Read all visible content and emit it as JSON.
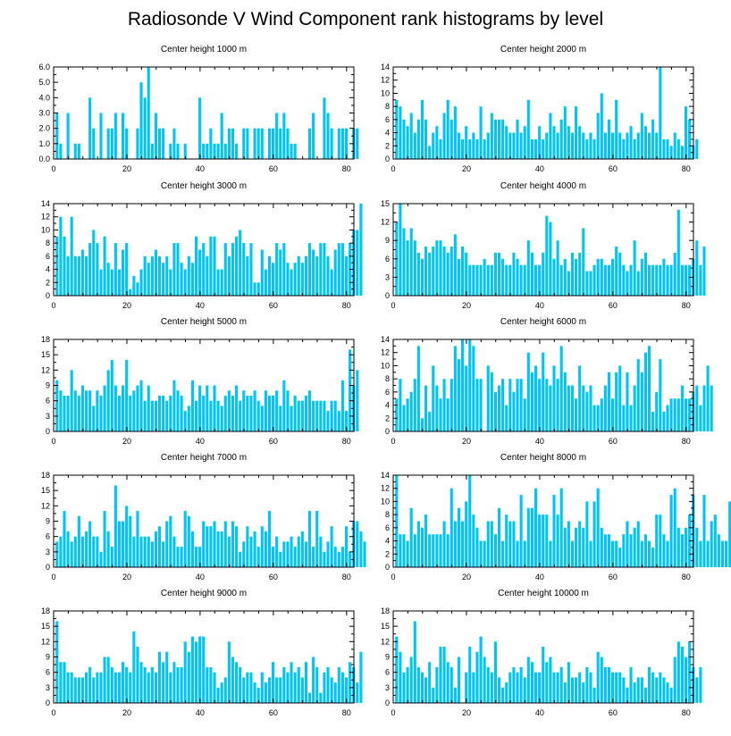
{
  "title": "Radiosonde V Wind Component rank histograms by level",
  "colors": {
    "bar": "#00c4f4",
    "axis": "#000000",
    "background": "#ffffff"
  },
  "chart_data": [
    {
      "type": "bar",
      "title": "Center height 1000 m",
      "xlim": [
        0,
        82
      ],
      "xticks": [
        "0",
        "20",
        "40",
        "60",
        "80"
      ],
      "ylim": [
        0,
        6
      ],
      "yticks": [
        "0.0",
        "1.0",
        "2.0",
        "3.0",
        "4.0",
        "5.0",
        "6.0"
      ],
      "values": [
        3,
        1,
        0,
        3,
        0,
        1,
        1,
        0,
        0,
        4,
        2,
        0,
        3,
        0,
        2,
        2,
        3,
        0,
        3,
        2,
        0,
        0,
        2,
        5,
        4,
        6,
        1,
        3,
        2,
        2,
        0,
        1,
        2,
        1,
        0,
        1,
        0,
        0,
        0,
        4,
        1,
        1,
        2,
        1,
        1,
        3,
        1,
        2,
        2,
        1,
        0,
        2,
        2,
        0,
        2,
        2,
        2,
        0,
        2,
        2,
        3,
        2,
        3,
        2,
        1,
        1,
        0,
        0,
        0,
        2,
        3,
        0,
        0,
        4,
        3,
        2,
        0,
        2,
        2,
        2,
        0,
        2,
        2
      ]
    },
    {
      "type": "bar",
      "title": "Center height 2000 m",
      "xlim": [
        0,
        82
      ],
      "xticks": [
        "0",
        "20",
        "40",
        "60",
        "80"
      ],
      "ylim": [
        0,
        14
      ],
      "yticks": [
        "0",
        "2",
        "4",
        "6",
        "8",
        "10",
        "12",
        "14"
      ],
      "values": [
        9,
        8,
        6,
        5,
        7,
        4,
        6,
        9,
        6,
        2,
        4,
        5,
        3,
        7,
        9,
        6,
        8,
        4,
        3,
        5,
        3,
        4,
        3,
        8,
        3,
        4,
        7,
        6,
        6,
        6,
        5,
        4,
        4,
        6,
        4,
        5,
        9,
        3,
        3,
        5,
        3,
        4,
        7,
        5,
        4,
        6,
        8,
        5,
        4,
        8,
        5,
        4,
        3,
        4,
        3,
        7,
        10,
        4,
        6,
        4,
        9,
        4,
        3,
        4,
        5,
        3,
        4,
        7,
        5,
        4,
        6,
        4,
        14,
        3,
        3,
        2,
        4,
        3,
        2,
        8,
        6,
        2,
        3
      ]
    },
    {
      "type": "bar",
      "title": "Center height 3000 m",
      "xlim": [
        0,
        82
      ],
      "xticks": [
        "0",
        "20",
        "40",
        "60",
        "80"
      ],
      "ylim": [
        0,
        14
      ],
      "yticks": [
        "0",
        "2",
        "4",
        "6",
        "8",
        "10",
        "12",
        "14"
      ],
      "values": [
        9,
        12,
        9,
        6,
        12,
        6,
        6,
        7,
        6,
        8,
        10,
        8,
        4,
        9,
        5,
        4,
        8,
        4,
        7,
        8,
        1,
        3,
        2,
        4,
        6,
        5,
        6,
        7,
        6,
        5,
        6,
        4,
        8,
        8,
        5,
        4,
        6,
        5,
        9,
        7,
        8,
        6,
        9,
        9,
        4,
        4,
        8,
        6,
        8,
        9,
        10,
        8,
        6,
        8,
        2,
        2,
        7,
        4,
        6,
        5,
        8,
        7,
        8,
        5,
        4,
        5,
        6,
        5,
        6,
        8,
        7,
        6,
        8,
        8,
        6,
        4,
        7,
        8,
        8,
        6,
        8,
        10,
        10,
        14
      ]
    },
    {
      "type": "bar",
      "title": "Center height 4000 m",
      "xlim": [
        0,
        82
      ],
      "xticks": [
        "0",
        "20",
        "40",
        "60",
        "80"
      ],
      "ylim": [
        0,
        15
      ],
      "yticks": [
        "0",
        "3",
        "6",
        "9",
        "12",
        "15"
      ],
      "values": [
        12,
        15,
        11,
        9,
        11,
        9,
        7,
        6,
        8,
        7,
        8,
        9,
        9,
        8,
        7,
        8,
        10,
        6,
        8,
        7,
        5,
        5,
        5,
        5,
        6,
        5,
        5,
        7,
        7,
        6,
        5,
        5,
        7,
        6,
        5,
        5,
        9,
        7,
        5,
        5,
        7,
        13,
        12,
        6,
        9,
        5,
        6,
        4,
        7,
        6,
        7,
        11,
        4,
        4,
        5,
        6,
        6,
        5,
        5,
        6,
        8,
        7,
        5,
        4,
        5,
        9,
        4,
        6,
        7,
        5,
        5,
        5,
        5,
        6,
        5,
        5,
        7,
        14,
        5,
        5,
        5,
        6,
        9,
        5,
        8
      ]
    },
    {
      "type": "bar",
      "title": "Center height 5000 m",
      "xlim": [
        0,
        82
      ],
      "xticks": [
        "0",
        "20",
        "40",
        "60",
        "80"
      ],
      "ylim": [
        0,
        18
      ],
      "yticks": [
        "0",
        "3",
        "6",
        "9",
        "12",
        "15",
        "18"
      ],
      "values": [
        10,
        8,
        7,
        7,
        12,
        8,
        7,
        9,
        8,
        8,
        5,
        8,
        7,
        9,
        12,
        14,
        9,
        7,
        9,
        14,
        7,
        8,
        9,
        10,
        6,
        9,
        6,
        6,
        7,
        7,
        6,
        7,
        10,
        8,
        7,
        4,
        5,
        10,
        6,
        9,
        7,
        9,
        6,
        9,
        6,
        5,
        7,
        8,
        7,
        9,
        6,
        8,
        7,
        7,
        8,
        6,
        5,
        8,
        7,
        7,
        8,
        5,
        10,
        8,
        5,
        7,
        6,
        6,
        7,
        8,
        6,
        6,
        6,
        6,
        4,
        6,
        6,
        4,
        10,
        4,
        16,
        9,
        12
      ]
    },
    {
      "type": "bar",
      "title": "Center height 6000 m",
      "xlim": [
        0,
        82
      ],
      "xticks": [
        "0",
        "20",
        "40",
        "60",
        "80"
      ],
      "ylim": [
        0,
        14
      ],
      "yticks": [
        "0",
        "2",
        "4",
        "6",
        "8",
        "10",
        "12",
        "14"
      ],
      "values": [
        5,
        8,
        4,
        5,
        6,
        8,
        13,
        2,
        7,
        3,
        10,
        7,
        5,
        8,
        5,
        8,
        13,
        11,
        14,
        10,
        14,
        13,
        8,
        8,
        0,
        10,
        9,
        6,
        7,
        8,
        4,
        8,
        6,
        8,
        8,
        5,
        12,
        9,
        10,
        8,
        12,
        8,
        7,
        10,
        8,
        13,
        9,
        7,
        7,
        5,
        10,
        7,
        6,
        7,
        4,
        4,
        5,
        7,
        9,
        5,
        9,
        10,
        4,
        9,
        4,
        7,
        11,
        9,
        12,
        13,
        3,
        6,
        11,
        3,
        4,
        5,
        5,
        5,
        7,
        5,
        5,
        6,
        7,
        4,
        7,
        10,
        7
      ]
    },
    {
      "type": "bar",
      "title": "Center height 7000 m",
      "xlim": [
        0,
        82
      ],
      "xticks": [
        "0",
        "20",
        "40",
        "60",
        "80"
      ],
      "ylim": [
        0,
        18
      ],
      "yticks": [
        "0",
        "3",
        "6",
        "9",
        "12",
        "15",
        "18"
      ],
      "values": [
        5,
        6,
        11,
        7,
        5,
        6,
        10,
        6,
        7,
        9,
        6,
        6,
        3,
        11,
        7,
        4,
        16,
        9,
        9,
        12,
        10,
        6,
        11,
        6,
        6,
        6,
        5,
        7,
        8,
        5,
        9,
        10,
        6,
        4,
        4,
        11,
        10,
        7,
        4,
        4,
        9,
        8,
        8,
        9,
        7,
        7,
        9,
        6,
        9,
        8,
        3,
        5,
        8,
        6,
        7,
        4,
        8,
        7,
        11,
        4,
        6,
        3,
        5,
        5,
        6,
        4,
        6,
        7,
        5,
        11,
        4,
        11,
        6,
        3,
        5,
        8,
        4,
        3,
        4,
        8,
        3,
        9,
        9,
        7,
        5
      ]
    },
    {
      "type": "bar",
      "title": "Center height 8000 m",
      "xlim": [
        0,
        82
      ],
      "xticks": [
        "0",
        "20",
        "40",
        "60",
        "80"
      ],
      "ylim": [
        0,
        14
      ],
      "yticks": [
        "0",
        "2",
        "4",
        "6",
        "8",
        "10",
        "12",
        "14"
      ],
      "values": [
        14,
        5,
        5,
        4,
        9,
        5,
        7,
        6,
        8,
        5,
        5,
        5,
        5,
        7,
        5,
        12,
        7,
        9,
        7,
        10,
        14,
        8,
        6,
        4,
        4,
        7,
        7,
        5,
        9,
        4,
        8,
        7,
        7,
        4,
        11,
        4,
        9,
        9,
        12,
        8,
        8,
        8,
        4,
        11,
        8,
        12,
        6,
        7,
        4,
        6,
        7,
        6,
        10,
        4,
        10,
        12,
        6,
        5,
        5,
        4,
        4,
        3,
        5,
        7,
        5,
        6,
        7,
        4,
        5,
        4,
        3,
        8,
        8,
        5,
        4,
        11,
        12,
        6,
        5,
        6,
        8,
        11,
        6,
        4,
        11,
        4,
        7,
        8,
        5,
        4,
        4,
        10
      ]
    },
    {
      "type": "bar",
      "title": "Center height 9000 m",
      "xlim": [
        0,
        82
      ],
      "xticks": [
        "0",
        "20",
        "40",
        "60",
        "80"
      ],
      "ylim": [
        0,
        18
      ],
      "yticks": [
        "0",
        "3",
        "6",
        "9",
        "12",
        "15",
        "18"
      ],
      "values": [
        16,
        8,
        8,
        6,
        6,
        5,
        5,
        5,
        6,
        7,
        5,
        6,
        6,
        9,
        9,
        7,
        6,
        6,
        8,
        7,
        6,
        14,
        11,
        8,
        7,
        6,
        7,
        6,
        10,
        8,
        10,
        6,
        8,
        7,
        7,
        12,
        10,
        13,
        12,
        13,
        13,
        7,
        7,
        6,
        3,
        4,
        5,
        12,
        9,
        8,
        7,
        5,
        6,
        6,
        4,
        3,
        6,
        4,
        5,
        8,
        5,
        5,
        7,
        6,
        8,
        6,
        7,
        5,
        8,
        2,
        9,
        7,
        2,
        6,
        7,
        5,
        4,
        7,
        6,
        5,
        8,
        7,
        4,
        10
      ]
    },
    {
      "type": "bar",
      "title": "Center height 10000 m",
      "xlim": [
        0,
        82
      ],
      "xticks": [
        "0",
        "20",
        "40",
        "60",
        "80"
      ],
      "ylim": [
        0,
        18
      ],
      "yticks": [
        "0",
        "3",
        "6",
        "9",
        "12",
        "15",
        "18"
      ],
      "values": [
        13,
        10,
        6,
        7,
        9,
        16,
        7,
        6,
        5,
        8,
        3,
        7,
        11,
        11,
        8,
        7,
        3,
        9,
        0,
        6,
        11,
        6,
        10,
        13,
        9,
        7,
        6,
        12,
        5,
        3,
        4,
        6,
        7,
        6,
        7,
        5,
        9,
        8,
        6,
        6,
        11,
        8,
        9,
        6,
        6,
        7,
        4,
        8,
        5,
        5,
        6,
        4,
        7,
        6,
        3,
        10,
        9,
        7,
        7,
        6,
        6,
        6,
        5,
        3,
        7,
        4,
        5,
        5,
        3,
        7,
        6,
        5,
        6,
        5,
        4,
        3,
        9,
        12,
        11,
        9,
        12,
        7,
        5,
        7
      ]
    }
  ]
}
